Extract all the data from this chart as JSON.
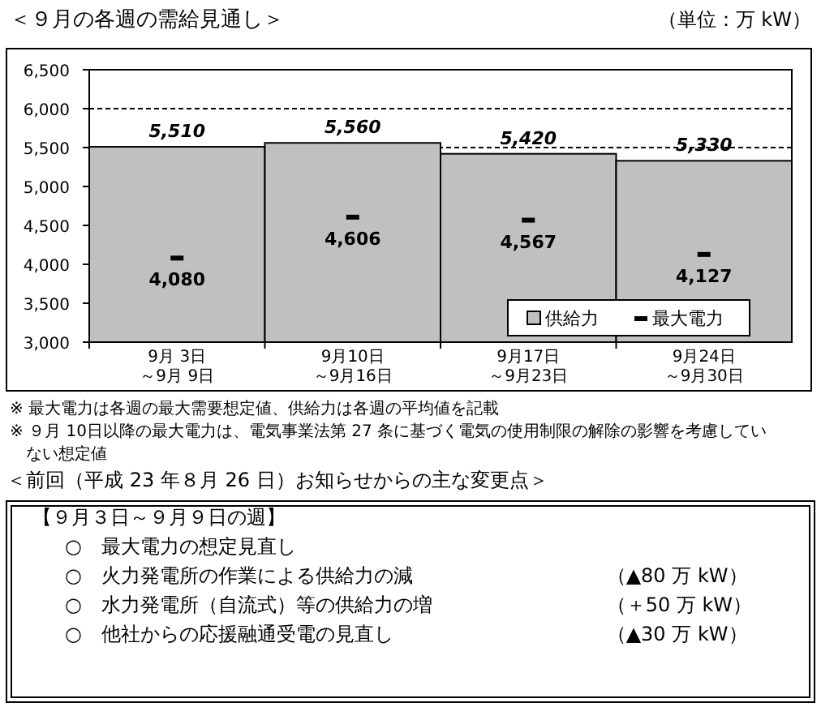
{
  "chart_data": {
    "type": "bar",
    "title": "＜９月の各週の需給見通し＞",
    "ylabel": "（単位：万 kW）",
    "categories": [
      "9月 3日～9月 9日",
      "9月10日～9月16日",
      "9月17日～9月23日",
      "9月24日～9月30日"
    ],
    "series": [
      {
        "name": "供給力",
        "color": "#c0c0c0",
        "values": [
          5510,
          5560,
          5420,
          5330
        ],
        "value_labels": [
          "5,510",
          "5,560",
          "5,420",
          "5,330"
        ]
      },
      {
        "name": "最大電力",
        "type": "scatter",
        "color": "#000000",
        "values": [
          4080,
          4606,
          4567,
          4127
        ],
        "value_labels": [
          "4,080",
          "4,606",
          "4,567",
          "4,127"
        ]
      }
    ],
    "ylim": [
      3000,
      6500
    ],
    "yticks": [
      {
        "value": 3000,
        "label": "3,000"
      },
      {
        "value": 3500,
        "label": "3,500"
      },
      {
        "value": 4000,
        "label": "4,000"
      },
      {
        "value": 4500,
        "label": "4,500"
      },
      {
        "value": 5000,
        "label": "5,000"
      },
      {
        "value": 5500,
        "label": "5,500"
      },
      {
        "value": 6000,
        "label": "6,000"
      },
      {
        "value": 6500,
        "label": "6,500"
      }
    ],
    "grid": "y",
    "legend": "bottom right",
    "annotations": [
      "※ 最大電力は各週の最大需要想定値、供給力は各週の平均値を記載",
      "※ ９月 10日以降の最大電力は、電気事業法第 27 条に基づく電気の使用制限の解除の影響を考慮していない想定値",
      "＜前回（平成 23 年８月 26 日）お知らせからの主な変更点＞",
      "【９月３日～９月９日の週】",
      "○　最大電力の想定見直し",
      "○　火力発電所の作業による供給力の減\t（▲80 万 kW）",
      "○　水力発電所（自流式）等の供給力の増\t（＋50 万 kW）",
      "○　他社からの応援融通受電の見直し\t（▲30 万 kW）"
    ]
  }
}
